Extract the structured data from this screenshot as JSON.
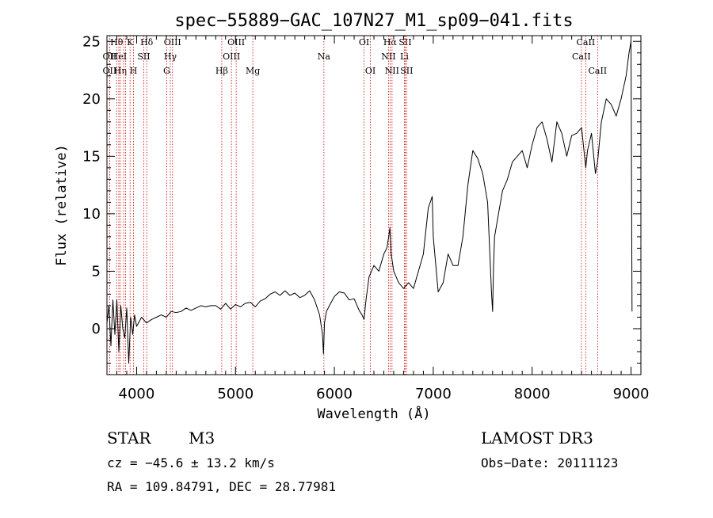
{
  "chart_data": {
    "type": "line",
    "title": "spec−55889−GAC_107N27_M1_sp09−041.fits",
    "xlabel": "Wavelength (Å)",
    "ylabel": "Flux (relative)",
    "xlim": [
      3700,
      9100
    ],
    "ylim": [
      -4,
      25.5
    ],
    "xticks": [
      {
        "value": 4000,
        "label": "4000"
      },
      {
        "value": 5000,
        "label": "5000"
      },
      {
        "value": 6000,
        "label": "6000"
      },
      {
        "value": 7000,
        "label": "7000"
      },
      {
        "value": 8000,
        "label": "8000"
      },
      {
        "value": 9000,
        "label": "9000"
      }
    ],
    "yticks": [
      {
        "value": 0,
        "label": "0"
      },
      {
        "value": 5,
        "label": "5"
      },
      {
        "value": 10,
        "label": "10"
      },
      {
        "value": 15,
        "label": "15"
      },
      {
        "value": 20,
        "label": "20"
      },
      {
        "value": 25,
        "label": "25"
      }
    ],
    "line_color": "#000000",
    "marker_color": "#cc0000",
    "series": [
      {
        "name": "Flux",
        "x": [
          3700,
          3720,
          3740,
          3760,
          3780,
          3800,
          3820,
          3840,
          3860,
          3880,
          3900,
          3920,
          3940,
          3960,
          3980,
          4000,
          4050,
          4100,
          4150,
          4200,
          4250,
          4300,
          4350,
          4400,
          4450,
          4500,
          4550,
          4600,
          4650,
          4700,
          4750,
          4800,
          4850,
          4900,
          4950,
          5000,
          5050,
          5100,
          5150,
          5200,
          5250,
          5300,
          5350,
          5400,
          5450,
          5500,
          5550,
          5600,
          5650,
          5700,
          5750,
          5800,
          5850,
          5880,
          5890,
          5900,
          5920,
          5950,
          6000,
          6050,
          6100,
          6150,
          6200,
          6250,
          6280,
          6300,
          6320,
          6350,
          6400,
          6450,
          6500,
          6530,
          6550,
          6562,
          6575,
          6600,
          6650,
          6700,
          6750,
          6800,
          6850,
          6900,
          6950,
          6990,
          7000,
          7050,
          7100,
          7150,
          7200,
          7250,
          7300,
          7350,
          7400,
          7450,
          7500,
          7550,
          7590,
          7600,
          7610,
          7620,
          7650,
          7700,
          7750,
          7800,
          7850,
          7900,
          7950,
          8000,
          8050,
          8100,
          8150,
          8200,
          8250,
          8300,
          8350,
          8400,
          8450,
          8500,
          8542,
          8560,
          8600,
          8640,
          8662,
          8700,
          8750,
          8800,
          8850,
          8900,
          8950,
          8980,
          9000,
          9010
        ],
        "y": [
          0.5,
          2.0,
          -1.5,
          2.5,
          -0.5,
          2.5,
          -2.0,
          2.0,
          0.0,
          -0.8,
          1.8,
          -3.0,
          1.0,
          -0.5,
          1.2,
          0.2,
          1.0,
          0.5,
          0.8,
          1.0,
          1.2,
          1.0,
          1.5,
          1.4,
          1.5,
          1.8,
          1.6,
          1.8,
          2.0,
          1.9,
          2.0,
          2.0,
          1.7,
          2.2,
          1.7,
          2.1,
          1.9,
          2.2,
          2.3,
          1.9,
          2.4,
          2.6,
          3.0,
          3.2,
          2.9,
          3.3,
          2.9,
          3.1,
          2.7,
          2.9,
          3.3,
          2.5,
          1.2,
          -0.5,
          -2.2,
          0.5,
          1.5,
          2.0,
          2.8,
          3.2,
          3.1,
          2.5,
          2.6,
          1.6,
          1.2,
          0.8,
          2.5,
          4.5,
          5.5,
          5.0,
          6.5,
          7.0,
          8.0,
          8.8,
          6.5,
          5.0,
          4.0,
          3.5,
          4.0,
          3.5,
          5.0,
          6.5,
          10.5,
          11.5,
          8.0,
          3.2,
          4.0,
          6.5,
          5.5,
          5.5,
          8.0,
          12.5,
          15.5,
          14.8,
          13.5,
          11.0,
          3.0,
          1.5,
          5.5,
          8.0,
          9.5,
          12.0,
          13.0,
          14.5,
          15.0,
          15.5,
          14.0,
          16.0,
          17.5,
          18.0,
          16.5,
          14.5,
          18.0,
          17.0,
          15.0,
          16.8,
          17.0,
          17.5,
          14.0,
          15.5,
          17.0,
          13.5,
          14.5,
          18.0,
          20.0,
          19.5,
          18.5,
          20.0,
          22.0,
          24.0,
          25.0,
          1.5
        ]
      }
    ],
    "markers": [
      {
        "wl": 3727,
        "label": "OII",
        "row": 2
      },
      {
        "wl": 3727,
        "label": "OII",
        "row": 3
      },
      {
        "wl": 3798,
        "label": "Hθ",
        "row": 1
      },
      {
        "wl": 3820,
        "label": "HeI",
        "row": 2
      },
      {
        "wl": 3835,
        "label": "Hη",
        "row": 3
      },
      {
        "wl": 3869,
        "label": "",
        "row": 0
      },
      {
        "wl": 3889,
        "label": "",
        "row": 0
      },
      {
        "wl": 3934,
        "label": "K",
        "row": 1
      },
      {
        "wl": 3969,
        "label": "H",
        "row": 3
      },
      {
        "wl": 4072,
        "label": "SII",
        "row": 2
      },
      {
        "wl": 4102,
        "label": "Hδ",
        "row": 1
      },
      {
        "wl": 4304,
        "label": "G",
        "row": 3
      },
      {
        "wl": 4341,
        "label": "Hγ",
        "row": 2
      },
      {
        "wl": 4363,
        "label": "OIII",
        "row": 1
      },
      {
        "wl": 4861,
        "label": "Hβ",
        "row": 3
      },
      {
        "wl": 4959,
        "label": "OIII",
        "row": 2
      },
      {
        "wl": 5007,
        "label": "OIII",
        "row": 1
      },
      {
        "wl": 5175,
        "label": "Mg",
        "row": 3
      },
      {
        "wl": 5894,
        "label": "Na",
        "row": 2
      },
      {
        "wl": 6300,
        "label": "OI",
        "row": 1
      },
      {
        "wl": 6364,
        "label": "OI",
        "row": 3
      },
      {
        "wl": 6548,
        "label": "NII",
        "row": 2
      },
      {
        "wl": 6563,
        "label": "Hα",
        "row": 1
      },
      {
        "wl": 6583,
        "label": "NII",
        "row": 3
      },
      {
        "wl": 6708,
        "label": "Li",
        "row": 2
      },
      {
        "wl": 6716,
        "label": "SII",
        "row": 1
      },
      {
        "wl": 6731,
        "label": "SII",
        "row": 3
      },
      {
        "wl": 8498,
        "label": "CaII",
        "row": 2
      },
      {
        "wl": 8542,
        "label": "CaII",
        "row": 1
      },
      {
        "wl": 8662,
        "label": "CaII",
        "row": 3
      }
    ]
  },
  "info": {
    "object_type": "STAR",
    "subclass": "M3",
    "survey": "LAMOST DR3",
    "redshift": "cz = −45.6 ± 13.2 km/s",
    "obs_date": "Obs−Date: 20111123",
    "coords": "RA = 109.84791, DEC =  28.77981"
  }
}
